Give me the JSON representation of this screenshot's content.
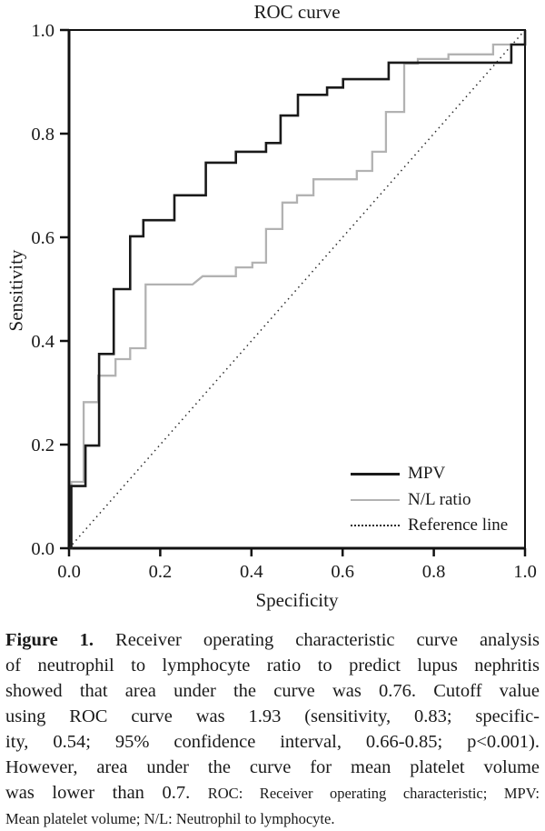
{
  "chart_data": {
    "type": "line",
    "title": "ROC curve",
    "xlabel": "Specificity",
    "ylabel": "Sensitivity",
    "xlim": [
      0,
      1
    ],
    "ylim": [
      0,
      1
    ],
    "grid": false,
    "legend_position": "lower right inside plot",
    "x_ticks": [
      "0.0",
      "0.2",
      "0.4",
      "0.6",
      "0.8",
      "1.0"
    ],
    "y_ticks": [
      "0.0",
      "0.2",
      "0.4",
      "0.6",
      "0.8",
      "1.0"
    ],
    "legend": [
      {
        "label": "MPV"
      },
      {
        "label": "N/L ratio"
      },
      {
        "label": "Reference line"
      }
    ],
    "colors": {
      "mpv": "#1a1a1a",
      "nl_ratio": "#b2b2b2",
      "reference": "#2a2a2a",
      "axis": "#111111"
    },
    "series": [
      {
        "name": "MPV",
        "color": "#1a1a1a",
        "width": 2.6,
        "points": [
          [
            0,
            0
          ],
          [
            0.005,
            0
          ],
          [
            0.005,
            0.12
          ],
          [
            0.036,
            0.12
          ],
          [
            0.036,
            0.198
          ],
          [
            0.066,
            0.198
          ],
          [
            0.066,
            0.375
          ],
          [
            0.098,
            0.375
          ],
          [
            0.098,
            0.5
          ],
          [
            0.134,
            0.5
          ],
          [
            0.134,
            0.602
          ],
          [
            0.163,
            0.602
          ],
          [
            0.163,
            0.633
          ],
          [
            0.231,
            0.633
          ],
          [
            0.231,
            0.681
          ],
          [
            0.3,
            0.681
          ],
          [
            0.3,
            0.744
          ],
          [
            0.366,
            0.744
          ],
          [
            0.366,
            0.765
          ],
          [
            0.432,
            0.765
          ],
          [
            0.432,
            0.782
          ],
          [
            0.464,
            0.782
          ],
          [
            0.464,
            0.835
          ],
          [
            0.502,
            0.835
          ],
          [
            0.502,
            0.875
          ],
          [
            0.566,
            0.875
          ],
          [
            0.566,
            0.889
          ],
          [
            0.601,
            0.889
          ],
          [
            0.601,
            0.905
          ],
          [
            0.701,
            0.905
          ],
          [
            0.701,
            0.937
          ],
          [
            0.97,
            0.937
          ],
          [
            0.97,
            0.972
          ],
          [
            1,
            0.972
          ],
          [
            1,
            1
          ]
        ]
      },
      {
        "name": "N/L ratio",
        "color": "#b2b2b2",
        "width": 2.3,
        "points": [
          [
            0,
            0
          ],
          [
            0.005,
            0
          ],
          [
            0.005,
            0.128
          ],
          [
            0.032,
            0.128
          ],
          [
            0.032,
            0.282
          ],
          [
            0.064,
            0.282
          ],
          [
            0.064,
            0.333
          ],
          [
            0.102,
            0.333
          ],
          [
            0.102,
            0.365
          ],
          [
            0.134,
            0.365
          ],
          [
            0.134,
            0.386
          ],
          [
            0.168,
            0.386
          ],
          [
            0.168,
            0.509
          ],
          [
            0.271,
            0.509
          ],
          [
            0.293,
            0.525
          ],
          [
            0.366,
            0.525
          ],
          [
            0.366,
            0.542
          ],
          [
            0.402,
            0.542
          ],
          [
            0.402,
            0.551
          ],
          [
            0.432,
            0.551
          ],
          [
            0.432,
            0.616
          ],
          [
            0.468,
            0.616
          ],
          [
            0.468,
            0.667
          ],
          [
            0.5,
            0.667
          ],
          [
            0.5,
            0.681
          ],
          [
            0.536,
            0.681
          ],
          [
            0.536,
            0.712
          ],
          [
            0.631,
            0.712
          ],
          [
            0.631,
            0.728
          ],
          [
            0.665,
            0.728
          ],
          [
            0.665,
            0.765
          ],
          [
            0.695,
            0.765
          ],
          [
            0.695,
            0.842
          ],
          [
            0.735,
            0.842
          ],
          [
            0.735,
            0.935
          ],
          [
            0.765,
            0.935
          ],
          [
            0.765,
            0.944
          ],
          [
            0.832,
            0.944
          ],
          [
            0.832,
            0.953
          ],
          [
            0.93,
            0.953
          ],
          [
            0.93,
            0.972
          ],
          [
            1,
            0.972
          ],
          [
            1,
            1
          ]
        ]
      }
    ],
    "reference_line": {
      "from": [
        0,
        0
      ],
      "to": [
        1,
        1
      ],
      "style": "dotted"
    }
  },
  "caption": {
    "heading": "Figure 1.",
    "line1_rest": "Receiver operating characteristic curve analysis",
    "line2": "of neutrophil to lymphocyte ratio to predict lupus nephritis",
    "line3": "showed that area under the curve was 0.76. Cutoff value",
    "line4": "using ROC curve was 1.93 (sensitivity, 0.83; specific-",
    "line5": "ity, 0.54; 95% confidence interval, 0.66-0.85; p<0.001).",
    "line6": "However, area under the curve for mean platelet volume",
    "line7_main": "was lower than 0.7.",
    "line7_small": "ROC: Receiver operating characteristic; MPV:",
    "line8_small": "Mean platelet volume; N/L: Neutrophil to lymphocyte."
  }
}
